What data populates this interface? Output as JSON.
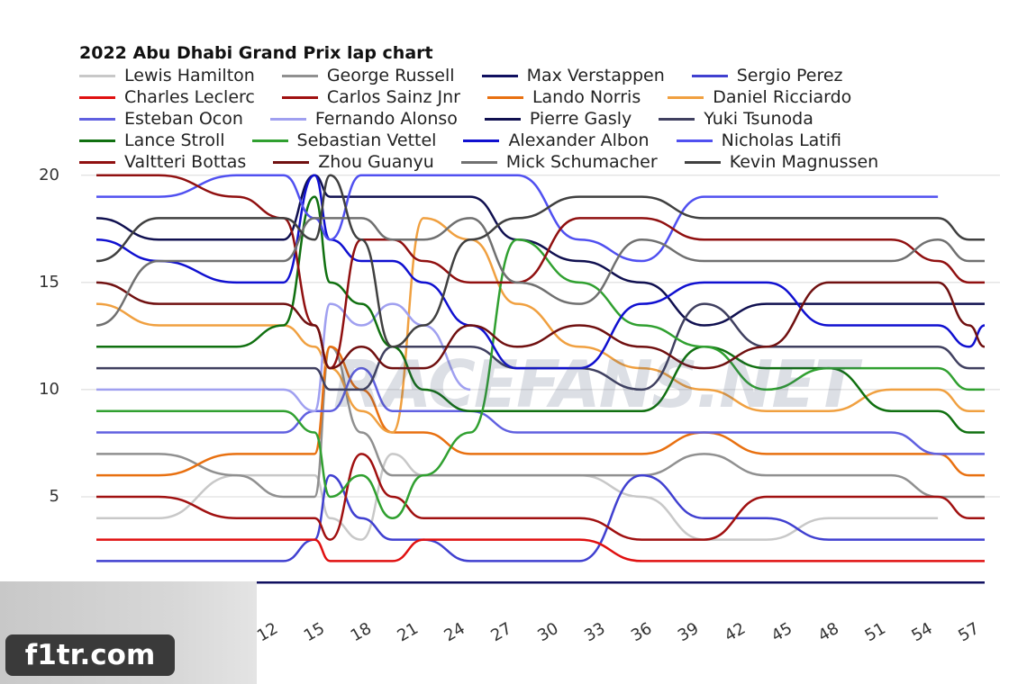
{
  "chart_data": {
    "type": "line",
    "title": "2022 Abu Dhabi Grand Prix lap chart",
    "x": [
      1,
      5,
      10,
      13,
      15,
      16,
      18,
      20,
      22,
      25,
      28,
      32,
      36,
      40,
      44,
      48,
      52,
      55,
      57,
      58
    ],
    "xlim": [
      1,
      58
    ],
    "xticks": [
      12,
      15,
      18,
      21,
      24,
      27,
      30,
      33,
      36,
      39,
      42,
      45,
      48,
      51,
      54,
      57
    ],
    "ylim": [
      0,
      21
    ],
    "yticks": [
      5,
      10,
      15,
      20
    ],
    "grid": true,
    "series": [
      {
        "name": "Lewis Hamilton",
        "color": "#c8c8c8",
        "values": [
          4,
          4,
          6,
          6,
          6,
          4,
          3,
          7,
          6,
          6,
          6,
          6,
          5,
          3,
          3,
          4,
          4,
          4,
          null,
          null
        ]
      },
      {
        "name": "George Russell",
        "color": "#909090",
        "values": [
          7,
          7,
          6,
          5,
          5,
          12,
          8,
          6,
          6,
          6,
          6,
          6,
          6,
          7,
          6,
          6,
          6,
          5,
          5,
          5
        ]
      },
      {
        "name": "Max Verstappen",
        "color": "#101060",
        "values": [
          1,
          1,
          1,
          1,
          1,
          1,
          1,
          1,
          1,
          1,
          1,
          1,
          1,
          1,
          1,
          1,
          1,
          1,
          1,
          1
        ]
      },
      {
        "name": "Sergio Perez",
        "color": "#4040d0",
        "values": [
          2,
          2,
          2,
          2,
          3,
          6,
          4,
          3,
          3,
          2,
          2,
          2,
          6,
          4,
          4,
          3,
          3,
          3,
          3,
          3
        ]
      },
      {
        "name": "Charles Leclerc",
        "color": "#e01010",
        "values": [
          3,
          3,
          3,
          3,
          3,
          2,
          2,
          2,
          3,
          3,
          3,
          3,
          2,
          2,
          2,
          2,
          2,
          2,
          2,
          2
        ]
      },
      {
        "name": "Carlos Sainz Jnr",
        "color": "#a01010",
        "values": [
          5,
          5,
          4,
          4,
          4,
          3,
          7,
          5,
          4,
          4,
          4,
          4,
          3,
          3,
          5,
          5,
          5,
          5,
          4,
          4
        ]
      },
      {
        "name": "Lando Norris",
        "color": "#e87010",
        "values": [
          6,
          6,
          7,
          7,
          7,
          12,
          10,
          8,
          8,
          7,
          7,
          7,
          7,
          8,
          7,
          7,
          7,
          7,
          6,
          6
        ]
      },
      {
        "name": "Daniel Ricciardo",
        "color": "#f0a040",
        "values": [
          14,
          13,
          13,
          13,
          12,
          11,
          9,
          8,
          18,
          17,
          14,
          12,
          11,
          10,
          9,
          9,
          10,
          10,
          9,
          9
        ]
      },
      {
        "name": "Esteban Ocon",
        "color": "#6060e0",
        "values": [
          8,
          8,
          8,
          8,
          9,
          9,
          11,
          9,
          9,
          9,
          8,
          8,
          8,
          8,
          8,
          8,
          8,
          7,
          7,
          7
        ]
      },
      {
        "name": "Fernando Alonso",
        "color": "#a0a0f0",
        "values": [
          10,
          10,
          10,
          10,
          9,
          14,
          13,
          14,
          13,
          10,
          null,
          null,
          null,
          null,
          null,
          null,
          null,
          null,
          null,
          null
        ]
      },
      {
        "name": "Pierre Gasly",
        "color": "#101050",
        "values": [
          18,
          17,
          17,
          17,
          20,
          19,
          19,
          19,
          19,
          19,
          17,
          16,
          15,
          13,
          14,
          14,
          14,
          14,
          14,
          14
        ]
      },
      {
        "name": "Yuki Tsunoda",
        "color": "#404060",
        "values": [
          11,
          11,
          11,
          11,
          11,
          10,
          10,
          12,
          12,
          12,
          11,
          11,
          10,
          14,
          12,
          12,
          12,
          12,
          11,
          11
        ]
      },
      {
        "name": "Lance Stroll",
        "color": "#107010",
        "values": [
          12,
          12,
          12,
          13,
          19,
          15,
          14,
          12,
          10,
          9,
          9,
          9,
          9,
          12,
          11,
          11,
          9,
          9,
          8,
          8
        ]
      },
      {
        "name": "Sebastian Vettel",
        "color": "#30a030",
        "values": [
          9,
          9,
          9,
          9,
          8,
          5,
          6,
          4,
          6,
          8,
          17,
          15,
          13,
          12,
          10,
          11,
          11,
          11,
          10,
          10
        ]
      },
      {
        "name": "Alexander Albon",
        "color": "#1010d0",
        "values": [
          17,
          16,
          15,
          15,
          20,
          17,
          16,
          16,
          15,
          13,
          11,
          11,
          14,
          15,
          15,
          13,
          13,
          13,
          12,
          13
        ]
      },
      {
        "name": "Nicholas Latifi",
        "color": "#5050f0",
        "values": [
          19,
          19,
          20,
          20,
          18,
          17,
          20,
          20,
          20,
          20,
          20,
          17,
          16,
          19,
          19,
          19,
          19,
          19,
          null,
          null
        ]
      },
      {
        "name": "Valtteri Bottas",
        "color": "#901010",
        "values": [
          20,
          20,
          19,
          18,
          13,
          11,
          17,
          17,
          16,
          15,
          15,
          18,
          18,
          17,
          17,
          17,
          17,
          16,
          15,
          15
        ]
      },
      {
        "name": "Zhou Guanyu",
        "color": "#701010",
        "values": [
          15,
          14,
          14,
          14,
          13,
          11,
          12,
          11,
          11,
          13,
          12,
          13,
          12,
          11,
          12,
          15,
          15,
          15,
          13,
          12
        ]
      },
      {
        "name": "Mick Schumacher",
        "color": "#707070",
        "values": [
          13,
          16,
          16,
          16,
          18,
          18,
          18,
          17,
          17,
          18,
          15,
          14,
          17,
          16,
          16,
          16,
          16,
          17,
          16,
          16
        ]
      },
      {
        "name": "Kevin Magnussen",
        "color": "#404040",
        "values": [
          16,
          18,
          18,
          18,
          17,
          20,
          17,
          12,
          13,
          17,
          18,
          19,
          19,
          18,
          18,
          18,
          18,
          18,
          17,
          17
        ]
      }
    ]
  },
  "watermarks": [
    "RACEFANS.NET",
    "f1tr.com"
  ]
}
